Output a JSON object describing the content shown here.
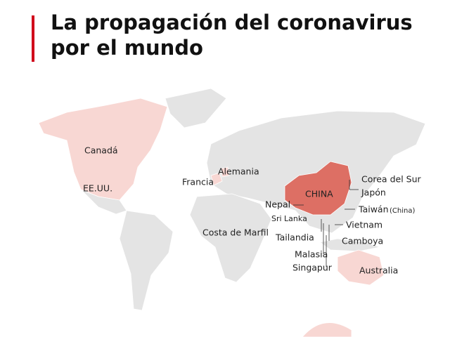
{
  "header": {
    "title": "La propagación del coronavirus por el mundo"
  },
  "map": {
    "labels": [
      "Canadá",
      "EE.UU.",
      "Francia",
      "Alemania",
      "Costa de Marfil",
      "Nepal",
      "CHINA",
      "Sri Lanka",
      "Tailandia",
      "Malasia",
      "Singapur",
      "Corea del Sur",
      "Japón",
      "Taiwán",
      "(China)",
      "Vietnam",
      "Camboya",
      "Australia"
    ]
  }
}
